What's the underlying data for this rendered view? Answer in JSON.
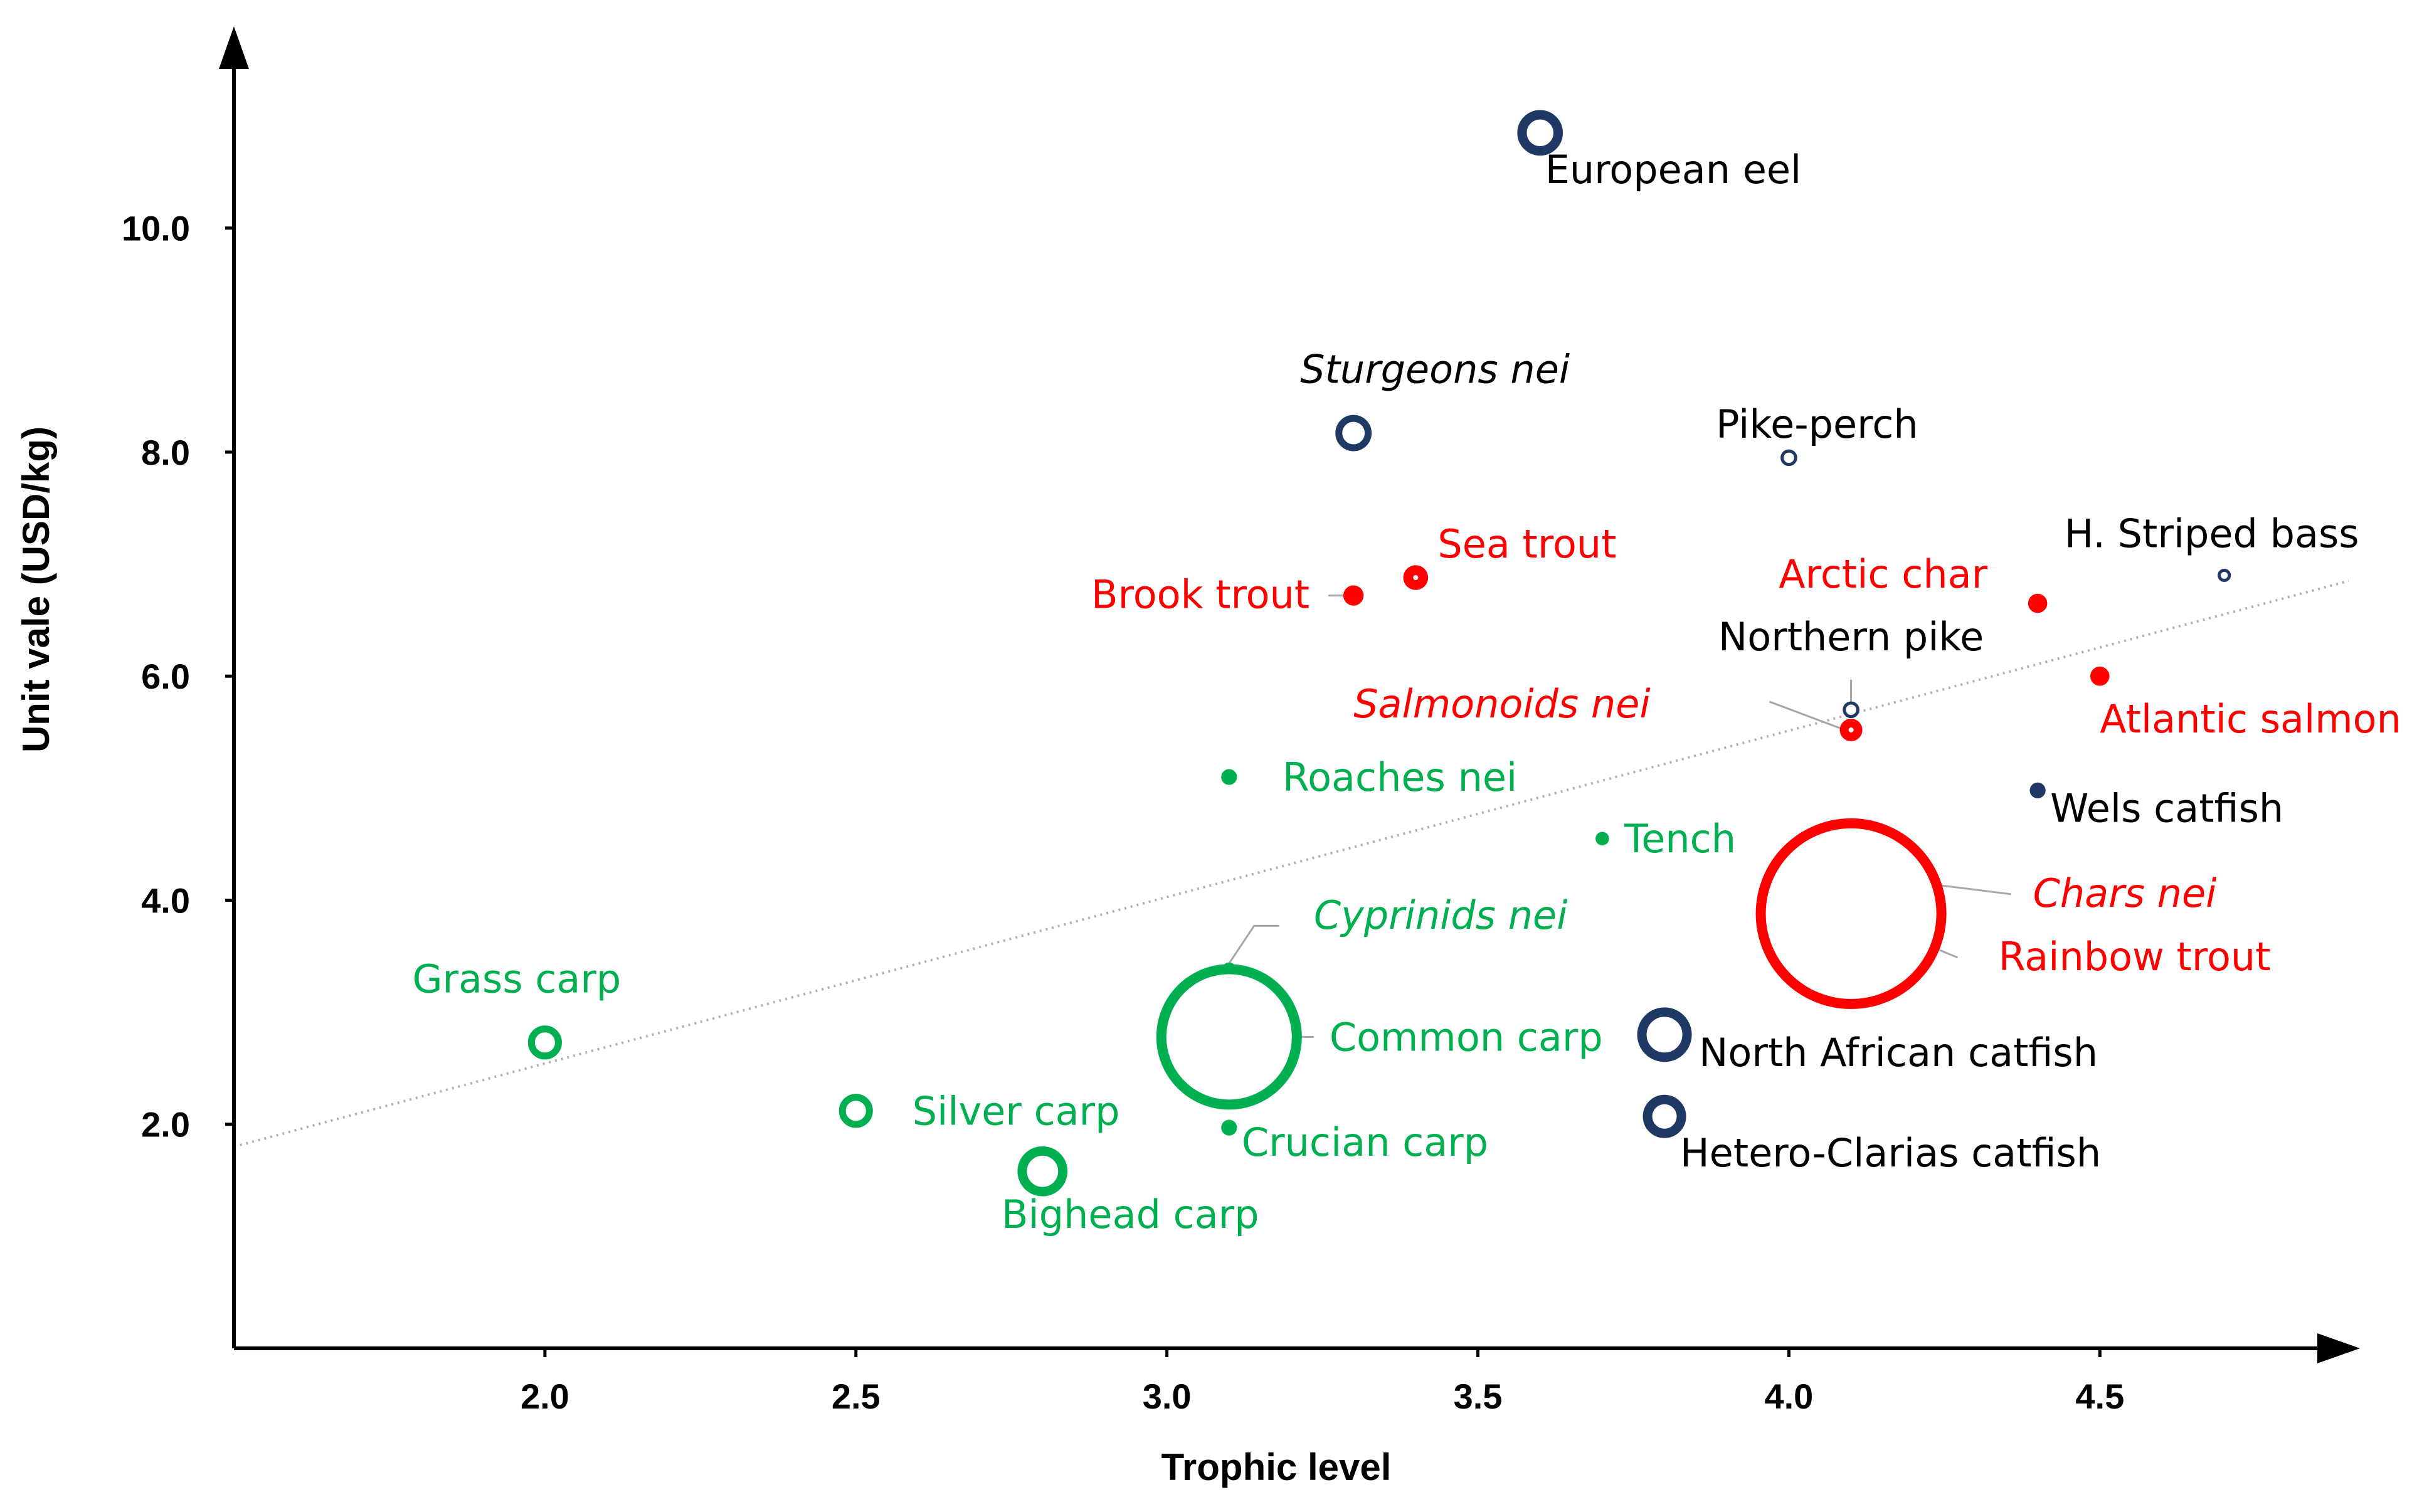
{
  "chart_data": {
    "type": "scatter",
    "title": "",
    "xlabel": "Trophic level",
    "ylabel": "Unit vale (USD/kg)",
    "xlim": [
      1.5,
      4.9
    ],
    "ylim": [
      0,
      11.7
    ],
    "x_ticks": [
      "2.0",
      "2.5",
      "3.0",
      "3.5",
      "4.0",
      "4.5"
    ],
    "y_ticks": [
      "2.0",
      "4.0",
      "6.0",
      "8.0",
      "10.0"
    ],
    "trendline": {
      "style": "dotted",
      "color": "#b0b0b0",
      "x": [
        1.5,
        4.9
      ],
      "y": [
        1.8,
        6.85
      ]
    },
    "colors": {
      "navy": "#1f3864",
      "red": "#ff0000",
      "green": "#00b050"
    },
    "points": [
      {
        "label": "European eel",
        "x": 3.6,
        "y": 10.85,
        "color": "navy",
        "style": "ring",
        "r": 1.6,
        "italic": false
      },
      {
        "label": "Sturgeons nei",
        "x": 3.3,
        "y": 8.17,
        "color": "navy",
        "style": "ring",
        "r": 1.3,
        "italic": true
      },
      {
        "label": "Pike-perch",
        "x": 4.0,
        "y": 7.95,
        "color": "navy",
        "style": "ring",
        "r": 0.6,
        "italic": false
      },
      {
        "label": "H. Striped bass",
        "x": 4.7,
        "y": 6.9,
        "color": "navy",
        "style": "ring",
        "r": 0.45,
        "italic": false
      },
      {
        "label": "Sea trout",
        "x": 3.4,
        "y": 6.88,
        "color": "red",
        "style": "dot",
        "r": 1.1,
        "italic": false
      },
      {
        "label": "Brook trout",
        "x": 3.3,
        "y": 6.72,
        "color": "red",
        "style": "dot",
        "r": 0.9,
        "italic": false
      },
      {
        "label": "Arctic char",
        "x": 4.4,
        "y": 6.65,
        "color": "red",
        "style": "dot",
        "r": 0.85,
        "italic": false
      },
      {
        "label": "Atlantic salmon",
        "x": 4.5,
        "y": 6.0,
        "color": "red",
        "style": "dot",
        "r": 0.85,
        "italic": false
      },
      {
        "label": "Northern pike",
        "x": 4.1,
        "y": 5.7,
        "color": "navy",
        "style": "ring",
        "r": 0.6,
        "italic": false
      },
      {
        "label": "Salmonoids nei",
        "x": 4.1,
        "y": 5.52,
        "color": "red",
        "style": "dot",
        "r": 1.0,
        "italic": true
      },
      {
        "label": "Roaches nei",
        "x": 3.1,
        "y": 5.1,
        "color": "green",
        "style": "dot",
        "r": 0.7,
        "italic": false
      },
      {
        "label": "Wels catfish",
        "x": 4.4,
        "y": 4.98,
        "color": "navy",
        "style": "dot",
        "r": 0.7,
        "italic": false
      },
      {
        "label": "Tench",
        "x": 3.7,
        "y": 4.55,
        "color": "green",
        "style": "dot",
        "r": 0.6,
        "italic": false
      },
      {
        "label": "Chars nei",
        "x": 4.1,
        "y": 4.25,
        "color": "red",
        "style": "dot",
        "r": 0.9,
        "italic": true
      },
      {
        "label": "Rainbow trout",
        "x": 4.1,
        "y": 3.88,
        "color": "red",
        "style": "ring",
        "r": 8.0,
        "italic": false
      },
      {
        "label": "Cyprinids nei",
        "x": 3.1,
        "y": 3.38,
        "color": "green",
        "style": "ring",
        "r": 0.5,
        "italic": true
      },
      {
        "label": "Common carp",
        "x": 3.1,
        "y": 2.78,
        "color": "green",
        "style": "ring",
        "r": 6.0,
        "italic": false
      },
      {
        "label": "North African catfish",
        "x": 3.8,
        "y": 2.8,
        "color": "navy",
        "style": "ring",
        "r": 2.0,
        "italic": false
      },
      {
        "label": "Grass carp",
        "x": 2.0,
        "y": 2.73,
        "color": "green",
        "style": "ring",
        "r": 1.2,
        "italic": false
      },
      {
        "label": "Silver carp",
        "x": 2.5,
        "y": 2.12,
        "color": "green",
        "style": "ring",
        "r": 1.2,
        "italic": false
      },
      {
        "label": "Hetero-Clarias catfish",
        "x": 3.8,
        "y": 2.07,
        "color": "navy",
        "style": "ring",
        "r": 1.5,
        "italic": false
      },
      {
        "label": "Crucian carp",
        "x": 3.1,
        "y": 1.97,
        "color": "green",
        "style": "dot",
        "r": 0.7,
        "italic": false
      },
      {
        "label": "Bighead carp",
        "x": 2.8,
        "y": 1.58,
        "color": "green",
        "style": "ring",
        "r": 1.8,
        "italic": false
      }
    ]
  }
}
